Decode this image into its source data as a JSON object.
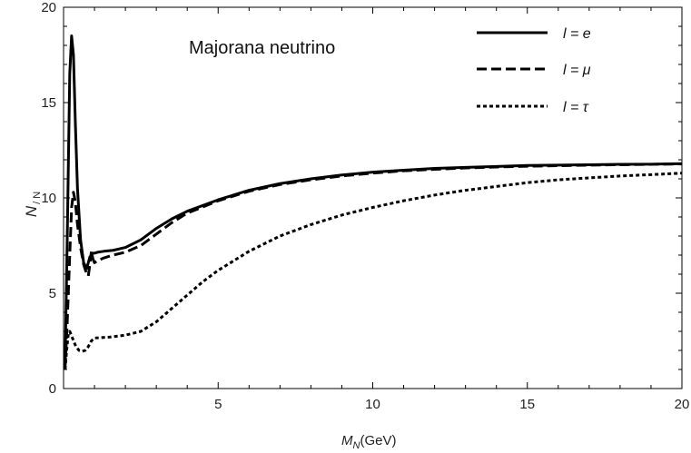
{
  "chart_data": {
    "type": "line",
    "title": "",
    "annotation": "Majorana neutrino",
    "xlabel": "M_N(GeV)",
    "xlabel_main": "M",
    "xlabel_sub": "N",
    "xlabel_unit": "(GeV)",
    "ylabel_main": "N",
    "ylabel_sub": "/ N",
    "xlim": [
      0,
      20
    ],
    "ylim": [
      0,
      20
    ],
    "xticks": [
      5,
      10,
      15,
      20
    ],
    "yticks": [
      0,
      5,
      10,
      15,
      20
    ],
    "grid": false,
    "legend_position": "top-right",
    "series": [
      {
        "name": "l = e",
        "style": "solid",
        "color": "#000000",
        "x": [
          0.05,
          0.12,
          0.2,
          0.26,
          0.32,
          0.38,
          0.45,
          0.55,
          0.65,
          0.75,
          0.85,
          0.95,
          1.0,
          1.1,
          1.3,
          1.6,
          2.0,
          2.5,
          3.0,
          3.5,
          4.0,
          5.0,
          6.0,
          7.0,
          8.0,
          9.0,
          10.0,
          11.0,
          12.0,
          13.0,
          14.0,
          15.0,
          16.0,
          17.0,
          18.0,
          19.0,
          20.0
        ],
        "values": [
          1.3,
          8.0,
          16.5,
          18.5,
          17.5,
          14.0,
          10.5,
          7.8,
          6.6,
          6.3,
          6.9,
          7.1,
          7.1,
          7.15,
          7.2,
          7.25,
          7.4,
          7.8,
          8.4,
          8.9,
          9.3,
          9.9,
          10.4,
          10.75,
          11.0,
          11.2,
          11.35,
          11.45,
          11.55,
          11.6,
          11.65,
          11.7,
          11.72,
          11.74,
          11.76,
          11.77,
          11.8
        ]
      },
      {
        "name": "l = μ",
        "style": "dashed",
        "color": "#000000",
        "x": [
          0.05,
          0.12,
          0.2,
          0.26,
          0.32,
          0.38,
          0.45,
          0.55,
          0.65,
          0.75,
          0.8,
          0.85,
          0.9,
          0.95,
          1.0,
          1.1,
          1.3,
          1.6,
          2.0,
          2.5,
          3.0,
          3.5,
          4.0,
          5.0,
          6.0,
          7.0,
          8.0,
          9.0,
          10.0,
          11.0,
          12.0,
          13.0,
          14.0,
          15.0,
          16.0,
          17.0,
          18.0,
          19.0,
          20.0
        ],
        "values": [
          1.1,
          3.5,
          7.0,
          9.5,
          10.3,
          9.8,
          8.6,
          7.4,
          6.5,
          6.0,
          5.9,
          6.5,
          7.2,
          6.8,
          6.6,
          6.7,
          6.85,
          7.0,
          7.15,
          7.5,
          8.1,
          8.7,
          9.2,
          9.85,
          10.35,
          10.7,
          10.95,
          11.15,
          11.3,
          11.42,
          11.5,
          11.57,
          11.62,
          11.66,
          11.69,
          11.72,
          11.74,
          11.76,
          11.78
        ]
      },
      {
        "name": "l = τ",
        "style": "dotted",
        "color": "#000000",
        "x": [
          0.05,
          0.1,
          0.15,
          0.2,
          0.3,
          0.4,
          0.5,
          0.6,
          0.7,
          0.8,
          0.9,
          1.0,
          1.5,
          2.0,
          2.5,
          3.0,
          3.5,
          4.0,
          4.5,
          5.0,
          6.0,
          7.0,
          8.0,
          9.0,
          10.0,
          11.0,
          12.0,
          13.0,
          14.0,
          15.0,
          16.0,
          17.0,
          18.0,
          19.0,
          20.0
        ],
        "values": [
          1.0,
          2.0,
          2.8,
          3.0,
          2.6,
          2.2,
          2.0,
          1.95,
          2.0,
          2.2,
          2.5,
          2.65,
          2.7,
          2.8,
          3.0,
          3.5,
          4.2,
          4.9,
          5.6,
          6.2,
          7.2,
          8.0,
          8.6,
          9.1,
          9.5,
          9.85,
          10.15,
          10.4,
          10.6,
          10.8,
          10.95,
          11.05,
          11.15,
          11.22,
          11.3
        ]
      }
    ]
  }
}
